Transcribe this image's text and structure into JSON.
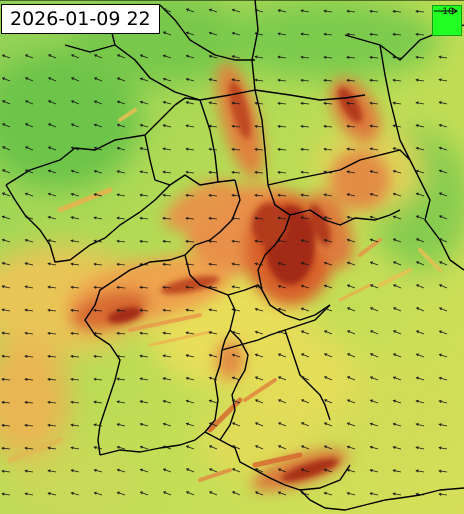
{
  "map": {
    "timestamp": "2026-01-09 22",
    "wind_scale": {
      "label": "10",
      "direction": "east",
      "color": "#22ff22"
    },
    "wind_arrow_direction": "west-southwest",
    "palette": {
      "low": "#7fcf4f",
      "lower_mid": "#b9dc55",
      "mid": "#e8de5a",
      "upper_mid": "#eea34e",
      "high": "#d8602a",
      "highest": "#8e1f10",
      "borders": "#000000"
    },
    "features": {
      "wind_speed_shading": "wind-speed-field",
      "wind_vectors": "wind-arrows",
      "region_borders": "administrative-borders"
    }
  }
}
